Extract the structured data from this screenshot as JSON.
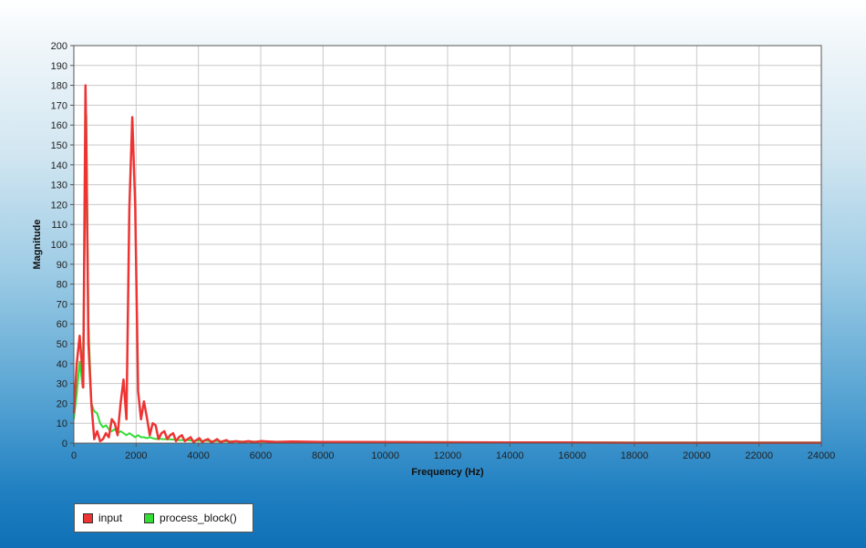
{
  "chart_data": {
    "type": "line",
    "title": "",
    "xlabel": "Frequency (Hz)",
    "ylabel": "Magnitude",
    "xlim": [
      0,
      24000
    ],
    "ylim": [
      0,
      200
    ],
    "xticks": [
      0,
      2000,
      4000,
      6000,
      8000,
      10000,
      12000,
      14000,
      16000,
      18000,
      20000,
      22000,
      24000
    ],
    "yticks": [
      0,
      10,
      20,
      30,
      40,
      50,
      60,
      70,
      80,
      90,
      100,
      110,
      120,
      130,
      140,
      150,
      160,
      170,
      180,
      190,
      200
    ],
    "grid": true,
    "legend": "bottom-left",
    "series": [
      {
        "name": "input",
        "color": "#ee3333",
        "x": [
          0,
          94,
          188,
          281,
          300,
          375,
          400,
          469,
          563,
          656,
          750,
          844,
          938,
          1031,
          1125,
          1219,
          1313,
          1406,
          1500,
          1594,
          1688,
          1781,
          1875,
          1969,
          2063,
          2156,
          2250,
          2344,
          2438,
          2531,
          2625,
          2719,
          2813,
          2906,
          3000,
          3094,
          3188,
          3281,
          3375,
          3469,
          3563,
          3656,
          3750,
          3844,
          3938,
          4031,
          4125,
          4219,
          4313,
          4406,
          4500,
          4600,
          4700,
          4800,
          4900,
          5000,
          5200,
          5400,
          5600,
          5800,
          6000,
          6500,
          7000,
          8000,
          10000,
          12000,
          14000,
          16000,
          18000,
          20000,
          22000,
          24000
        ],
        "y": [
          15,
          40,
          54,
          35,
          28,
          180,
          150,
          50,
          20,
          2,
          6,
          1,
          2,
          5,
          3,
          12,
          10,
          4,
          20,
          32,
          12,
          118,
          164,
          120,
          26,
          12,
          21,
          13,
          4,
          10,
          9,
          2,
          5,
          6,
          2,
          4,
          5,
          1,
          3,
          4,
          1,
          2,
          3,
          0.5,
          1.5,
          2.5,
          0.5,
          1.5,
          2,
          0.5,
          1,
          2,
          0.5,
          1,
          1.5,
          0.5,
          1,
          0.5,
          1,
          0.5,
          1,
          0.6,
          0.8,
          0.6,
          0.5,
          0.4,
          0.3,
          0.3,
          0.2,
          0.2,
          0.2,
          0.2
        ]
      },
      {
        "name": "process_block()",
        "color": "#33dd33",
        "x": [
          0,
          94,
          188,
          281,
          375,
          400,
          469,
          563,
          656,
          750,
          844,
          938,
          1031,
          1125,
          1219,
          1313,
          1406,
          1500,
          1594,
          1688,
          1781,
          1875,
          1969,
          2063,
          2156,
          2250,
          2344,
          2438,
          2531,
          2625,
          2719,
          2813,
          2906,
          3000,
          3200,
          3400,
          3600,
          3800,
          4000,
          4200,
          4400,
          4600,
          4800,
          5000,
          5500,
          6000,
          7000,
          8000,
          10000,
          12000,
          14000,
          16000,
          18000,
          20000,
          22000,
          24000
        ],
        "y": [
          12,
          25,
          41,
          28,
          130,
          165,
          60,
          20,
          16,
          15,
          10,
          8,
          9,
          7,
          6,
          7,
          5,
          6,
          5,
          4,
          5,
          4,
          3,
          4,
          3,
          3,
          2.5,
          3,
          2.5,
          2,
          2.5,
          2,
          2,
          2,
          1.8,
          1.5,
          1.6,
          1.3,
          1.2,
          1.2,
          1.0,
          1.0,
          0.9,
          0.9,
          0.8,
          0.8,
          0.7,
          0.6,
          0.5,
          0.5,
          0.4,
          0.4,
          0.3,
          0.3,
          0.3,
          0.3
        ]
      }
    ]
  }
}
